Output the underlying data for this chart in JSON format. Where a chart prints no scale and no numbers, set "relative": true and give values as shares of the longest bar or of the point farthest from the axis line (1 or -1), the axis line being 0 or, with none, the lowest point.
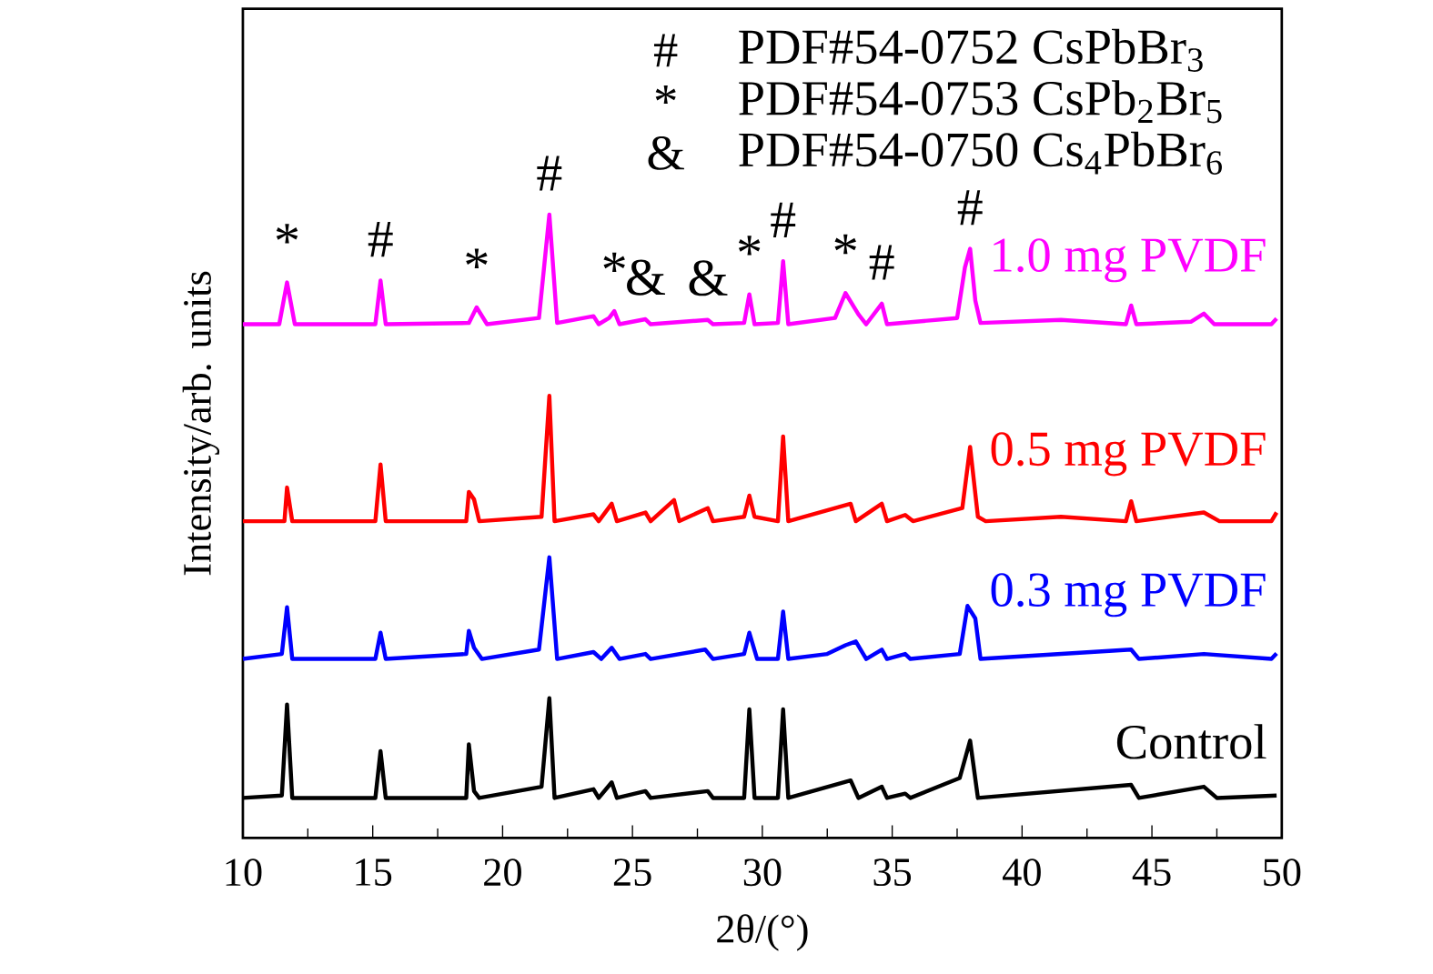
{
  "chart_data": {
    "type": "line",
    "relative": true,
    "xlabel": "2θ/(°)",
    "ylabel": "Intensity/arb. units",
    "xlim": [
      10,
      50
    ],
    "xticks": [
      10,
      {
        "value": 12.5,
        "label": null
      },
      15,
      {
        "value": 17.5,
        "label": null
      },
      20,
      {
        "value": 22.5,
        "label": null
      },
      25,
      {
        "value": 27.5,
        "label": null
      },
      30,
      {
        "value": 32.5,
        "label": null
      },
      35,
      {
        "value": 37.5,
        "label": null
      },
      40,
      {
        "value": 42.5,
        "label": null
      },
      45,
      {
        "value": 47.5,
        "label": null
      },
      50
    ],
    "series": [
      {
        "name": "1.0 mg PVDF",
        "color": "#ff00ff",
        "x": [
          10,
          11.4,
          11.7,
          12.0,
          15.1,
          15.3,
          15.5,
          18.7,
          19.0,
          19.4,
          21.4,
          21.8,
          22.1,
          23.5,
          23.7,
          24.1,
          24.3,
          24.5,
          25.5,
          25.7,
          27.9,
          28.1,
          29.3,
          29.5,
          29.7,
          30.6,
          30.8,
          31.0,
          32.8,
          33.2,
          33.7,
          34.0,
          34.6,
          34.8,
          37.5,
          37.8,
          38.0,
          38.2,
          38.4,
          41.5,
          44.0,
          44.2,
          44.4,
          46.5,
          47.0,
          47.4,
          49.6,
          49.8
        ],
        "values": [
          0.824,
          0.824,
          0.891,
          0.824,
          0.824,
          0.894,
          0.824,
          0.826,
          0.851,
          0.824,
          0.834,
          1.0,
          0.826,
          0.837,
          0.824,
          0.834,
          0.845,
          0.824,
          0.832,
          0.824,
          0.831,
          0.824,
          0.826,
          0.872,
          0.824,
          0.826,
          0.925,
          0.824,
          0.834,
          0.874,
          0.84,
          0.824,
          0.857,
          0.824,
          0.834,
          0.915,
          0.945,
          0.862,
          0.826,
          0.831,
          0.824,
          0.854,
          0.824,
          0.828,
          0.841,
          0.824,
          0.824,
          0.833
        ]
      },
      {
        "name": "0.5 mg PVDF",
        "color": "#ff0000",
        "x": [
          10,
          11.6,
          11.7,
          11.9,
          15.1,
          15.3,
          15.5,
          18.6,
          18.7,
          18.9,
          19.1,
          21.5,
          21.8,
          22.0,
          23.5,
          23.7,
          24.2,
          24.4,
          25.5,
          25.7,
          26.6,
          26.8,
          27.9,
          28.1,
          29.3,
          29.5,
          29.7,
          30.6,
          30.8,
          31.0,
          33.4,
          33.6,
          34.6,
          34.8,
          35.5,
          35.8,
          37.7,
          38.0,
          38.3,
          38.6,
          41.5,
          44.0,
          44.2,
          44.4,
          47.0,
          47.6,
          49.6,
          49.8
        ],
        "values": [
          0.508,
          0.508,
          0.562,
          0.508,
          0.508,
          0.599,
          0.508,
          0.508,
          0.555,
          0.543,
          0.508,
          0.515,
          0.709,
          0.508,
          0.519,
          0.508,
          0.536,
          0.508,
          0.522,
          0.508,
          0.542,
          0.508,
          0.529,
          0.508,
          0.515,
          0.549,
          0.515,
          0.508,
          0.644,
          0.508,
          0.536,
          0.508,
          0.536,
          0.508,
          0.518,
          0.508,
          0.529,
          0.627,
          0.515,
          0.508,
          0.515,
          0.508,
          0.54,
          0.508,
          0.522,
          0.508,
          0.508,
          0.522
        ]
      },
      {
        "name": "0.3 mg PVDF",
        "color": "#0000ff",
        "x": [
          10,
          11.5,
          11.7,
          11.9,
          15.1,
          15.3,
          15.5,
          18.6,
          18.7,
          18.9,
          19.2,
          21.4,
          21.8,
          22.1,
          23.5,
          23.8,
          24.2,
          24.5,
          25.5,
          25.7,
          27.8,
          28.1,
          29.3,
          29.5,
          29.8,
          30.6,
          30.8,
          31.0,
          32.5,
          33.2,
          33.6,
          34.0,
          34.6,
          34.8,
          35.5,
          35.7,
          37.6,
          37.9,
          38.2,
          38.4,
          44.2,
          44.5,
          47.0,
          49.6,
          49.8
        ],
        "values": [
          0.287,
          0.295,
          0.37,
          0.287,
          0.287,
          0.329,
          0.287,
          0.295,
          0.332,
          0.305,
          0.287,
          0.302,
          0.45,
          0.287,
          0.298,
          0.287,
          0.305,
          0.287,
          0.295,
          0.287,
          0.302,
          0.287,
          0.295,
          0.329,
          0.287,
          0.287,
          0.363,
          0.287,
          0.295,
          0.309,
          0.315,
          0.287,
          0.302,
          0.287,
          0.295,
          0.287,
          0.295,
          0.372,
          0.352,
          0.287,
          0.302,
          0.287,
          0.295,
          0.287,
          0.296
        ]
      },
      {
        "name": "Control",
        "color": "#000000",
        "x": [
          10,
          11.5,
          11.7,
          11.9,
          15.1,
          15.3,
          15.5,
          18.6,
          18.7,
          18.9,
          19.1,
          21.5,
          21.8,
          22.0,
          23.5,
          23.7,
          24.2,
          24.4,
          25.5,
          25.7,
          27.9,
          28.1,
          29.3,
          29.5,
          29.7,
          30.6,
          30.8,
          31.0,
          33.4,
          33.7,
          34.6,
          34.8,
          35.5,
          35.7,
          37.6,
          38.0,
          38.3,
          44.2,
          44.5,
          47.0,
          47.5,
          49.8
        ],
        "values": [
          0.064,
          0.068,
          0.214,
          0.064,
          0.064,
          0.139,
          0.064,
          0.064,
          0.15,
          0.075,
          0.064,
          0.082,
          0.224,
          0.064,
          0.078,
          0.064,
          0.089,
          0.064,
          0.075,
          0.064,
          0.075,
          0.064,
          0.064,
          0.206,
          0.064,
          0.064,
          0.206,
          0.064,
          0.092,
          0.064,
          0.082,
          0.064,
          0.071,
          0.064,
          0.096,
          0.156,
          0.064,
          0.085,
          0.064,
          0.082,
          0.064,
          0.068
        ]
      }
    ],
    "annotations": [
      "#",
      "PDF#54-0752 CsPbBr$_{3}$",
      "*",
      "PDF#54-0753 CsPb$_{2}$Br$_{5}$",
      "&",
      "PDF#54-0750 Cs$_{4}$PbBr$_{6}$",
      {
        "text": "*",
        "x": 11.7,
        "y": 0.891
      },
      {
        "text": "#",
        "x": 15.3,
        "y": 0.894
      },
      {
        "text": "*",
        "x": 19.0,
        "y": 0.851
      },
      {
        "text": "#",
        "x": 21.8,
        "y": 1.0
      },
      {
        "text": "*",
        "x": 24.3,
        "y": 0.845
      },
      {
        "text": "&",
        "x": 25.5,
        "y": 0.832
      },
      {
        "text": "&",
        "x": 27.9,
        "y": 0.831
      },
      {
        "text": "*",
        "x": 29.5,
        "y": 0.872
      },
      {
        "text": "#",
        "x": 30.8,
        "y": 0.925
      },
      {
        "text": "*",
        "x": 33.2,
        "y": 0.874
      },
      {
        "text": "#",
        "x": 34.6,
        "y": 0.857
      },
      {
        "text": "#",
        "x": 38.0,
        "y": 0.945
      }
    ]
  }
}
